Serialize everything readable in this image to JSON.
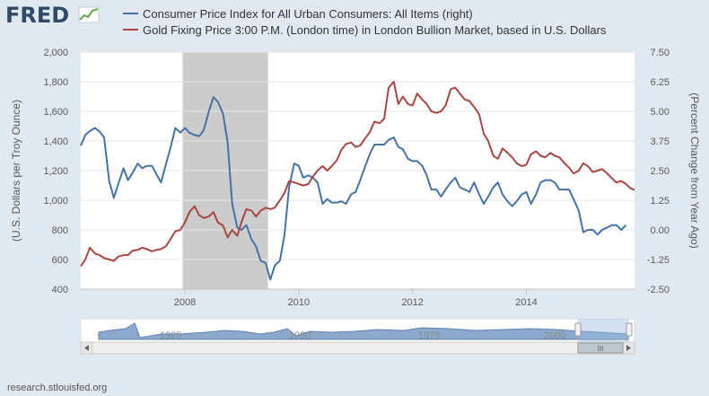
{
  "header": {
    "logo_text": "FRED",
    "logo_icon": "fred-chart-icon"
  },
  "footer": {
    "source": "research.stlouisfed.org"
  },
  "colors": {
    "cpi": "#4572a7",
    "gold": "#aa4643",
    "recession": "#cccccc",
    "plot_bg": "#ffffff",
    "page_bg": "#e1e9f0"
  },
  "navigator": {
    "labels": [
      "1925",
      "1950",
      "1975",
      "2000"
    ],
    "scroll_label": "III"
  },
  "chart_data": {
    "type": "line",
    "x_range": [
      2006.17,
      2015.9
    ],
    "x_ticks": [
      "2008",
      "2010",
      "2012",
      "2014"
    ],
    "x_tick_values": [
      2008,
      2010,
      2012,
      2014
    ],
    "recession": {
      "start": 2007.96,
      "end": 2009.46
    },
    "y_left": {
      "label": "(U.S. Dollars per Troy Ounce)",
      "range": [
        400,
        2000
      ],
      "ticks": [
        "2,000",
        "1,800",
        "1,600",
        "1,400",
        "1,200",
        "1,000",
        "800",
        "600",
        "400"
      ],
      "tick_values": [
        2000,
        1800,
        1600,
        1400,
        1200,
        1000,
        800,
        600,
        400
      ]
    },
    "y_right": {
      "label": "(Percent Change from Year Ago)",
      "range": [
        -2.5,
        7.5
      ],
      "ticks": [
        "7.50",
        "6.25",
        "5.00",
        "3.75",
        "2.50",
        "1.25",
        "0.00",
        "-1.25",
        "-2.50"
      ],
      "tick_values": [
        7.5,
        6.25,
        5.0,
        3.75,
        2.5,
        1.25,
        0.0,
        -1.25,
        -2.5
      ]
    },
    "series": [
      {
        "name": "Consumer Price Index for All Urban Consumers: All Items (right)",
        "axis": "right",
        "color": "#4572a7",
        "x": [
          2006.17,
          2006.25,
          2006.33,
          2006.42,
          2006.5,
          2006.58,
          2006.67,
          2006.75,
          2006.83,
          2006.92,
          2007.0,
          2007.08,
          2007.17,
          2007.25,
          2007.33,
          2007.42,
          2007.5,
          2007.58,
          2007.67,
          2007.75,
          2007.83,
          2007.92,
          2008.0,
          2008.08,
          2008.17,
          2008.25,
          2008.33,
          2008.42,
          2008.5,
          2008.58,
          2008.67,
          2008.75,
          2008.83,
          2008.92,
          2009.0,
          2009.08,
          2009.17,
          2009.25,
          2009.33,
          2009.42,
          2009.5,
          2009.58,
          2009.67,
          2009.75,
          2009.83,
          2009.92,
          2010.0,
          2010.08,
          2010.17,
          2010.25,
          2010.33,
          2010.42,
          2010.5,
          2010.58,
          2010.67,
          2010.75,
          2010.83,
          2010.92,
          2011.0,
          2011.08,
          2011.17,
          2011.25,
          2011.33,
          2011.42,
          2011.5,
          2011.58,
          2011.67,
          2011.75,
          2011.83,
          2011.92,
          2012.0,
          2012.08,
          2012.17,
          2012.25,
          2012.33,
          2012.42,
          2012.5,
          2012.58,
          2012.67,
          2012.75,
          2012.83,
          2012.92,
          2013.0,
          2013.08,
          2013.17,
          2013.25,
          2013.33,
          2013.42,
          2013.5,
          2013.58,
          2013.67,
          2013.75,
          2013.83,
          2013.92,
          2014.0,
          2014.08,
          2014.17,
          2014.25,
          2014.33,
          2014.42,
          2014.5,
          2014.58,
          2014.67,
          2014.75,
          2014.83,
          2014.92,
          2015.0,
          2015.08,
          2015.17,
          2015.25,
          2015.33,
          2015.42,
          2015.5,
          2015.58,
          2015.67,
          2015.75
        ],
        "values": [
          3.55,
          4.0,
          4.17,
          4.3,
          4.15,
          3.9,
          2.05,
          1.35,
          1.95,
          2.6,
          2.1,
          2.4,
          2.8,
          2.6,
          2.7,
          2.7,
          2.35,
          2.0,
          2.8,
          3.5,
          4.3,
          4.1,
          4.3,
          4.1,
          4.0,
          3.95,
          4.2,
          5.0,
          5.6,
          5.4,
          4.9,
          3.7,
          1.1,
          0.1,
          0.0,
          0.2,
          -0.4,
          -0.7,
          -1.3,
          -1.4,
          -2.1,
          -1.5,
          -1.3,
          -0.2,
          1.8,
          2.8,
          2.7,
          2.2,
          2.3,
          2.2,
          2.0,
          1.1,
          1.3,
          1.15,
          1.15,
          1.2,
          1.1,
          1.5,
          1.6,
          2.1,
          2.7,
          3.2,
          3.6,
          3.6,
          3.6,
          3.8,
          3.9,
          3.5,
          3.4,
          3.0,
          2.9,
          2.9,
          2.7,
          2.3,
          1.7,
          1.7,
          1.4,
          1.7,
          2.0,
          2.2,
          1.8,
          1.7,
          1.6,
          2.0,
          1.5,
          1.1,
          1.4,
          1.8,
          2.0,
          1.5,
          1.2,
          1.0,
          1.2,
          1.5,
          1.6,
          1.1,
          1.5,
          2.0,
          2.1,
          2.1,
          2.0,
          1.7,
          1.7,
          1.7,
          1.3,
          0.8,
          -0.1,
          0.0,
          0.0,
          -0.2,
          0.0,
          0.1,
          0.2,
          0.2,
          0.0,
          0.2
        ]
      },
      {
        "name": "Gold Fixing Price 3:00 P.M. (London time) in London Bullion Market, based in U.S. Dollars",
        "axis": "left",
        "color": "#aa4643",
        "x": [
          2006.17,
          2006.25,
          2006.33,
          2006.42,
          2006.5,
          2006.58,
          2006.67,
          2006.75,
          2006.83,
          2006.92,
          2007.0,
          2007.08,
          2007.17,
          2007.25,
          2007.33,
          2007.42,
          2007.5,
          2007.58,
          2007.67,
          2007.75,
          2007.83,
          2007.92,
          2008.0,
          2008.08,
          2008.17,
          2008.25,
          2008.33,
          2008.42,
          2008.5,
          2008.58,
          2008.67,
          2008.75,
          2008.83,
          2008.92,
          2009.0,
          2009.08,
          2009.17,
          2009.25,
          2009.33,
          2009.42,
          2009.5,
          2009.58,
          2009.67,
          2009.75,
          2009.83,
          2009.92,
          2010.0,
          2010.08,
          2010.17,
          2010.25,
          2010.33,
          2010.42,
          2010.5,
          2010.58,
          2010.67,
          2010.75,
          2010.83,
          2010.92,
          2011.0,
          2011.08,
          2011.17,
          2011.25,
          2011.33,
          2011.42,
          2011.5,
          2011.58,
          2011.67,
          2011.75,
          2011.83,
          2011.92,
          2012.0,
          2012.08,
          2012.17,
          2012.25,
          2012.33,
          2012.42,
          2012.5,
          2012.58,
          2012.67,
          2012.75,
          2012.83,
          2012.92,
          2013.0,
          2013.08,
          2013.17,
          2013.25,
          2013.33,
          2013.42,
          2013.5,
          2013.58,
          2013.67,
          2013.75,
          2013.83,
          2013.92,
          2014.0,
          2014.08,
          2014.17,
          2014.25,
          2014.33,
          2014.42,
          2014.5,
          2014.58,
          2014.67,
          2014.75,
          2014.83,
          2014.92,
          2015.0,
          2015.08,
          2015.17,
          2015.25,
          2015.33,
          2015.42,
          2015.5,
          2015.58,
          2015.67,
          2015.75,
          2015.83,
          2015.9
        ],
        "values": [
          555,
          600,
          680,
          640,
          630,
          610,
          600,
          590,
          620,
          630,
          630,
          660,
          665,
          680,
          670,
          655,
          665,
          670,
          690,
          740,
          790,
          800,
          850,
          920,
          960,
          900,
          880,
          890,
          920,
          850,
          830,
          750,
          800,
          760,
          860,
          940,
          930,
          890,
          930,
          950,
          940,
          950,
          1000,
          1050,
          1130,
          1120,
          1110,
          1100,
          1110,
          1160,
          1200,
          1230,
          1200,
          1230,
          1270,
          1340,
          1380,
          1390,
          1360,
          1370,
          1420,
          1460,
          1530,
          1520,
          1550,
          1760,
          1800,
          1650,
          1700,
          1650,
          1640,
          1720,
          1680,
          1650,
          1600,
          1590,
          1600,
          1640,
          1750,
          1760,
          1720,
          1680,
          1670,
          1630,
          1580,
          1450,
          1400,
          1300,
          1280,
          1350,
          1320,
          1290,
          1250,
          1230,
          1240,
          1310,
          1330,
          1300,
          1290,
          1320,
          1300,
          1290,
          1250,
          1220,
          1180,
          1200,
          1250,
          1230,
          1190,
          1200,
          1210,
          1180,
          1150,
          1120,
          1130,
          1110,
          1080,
          1070
        ]
      }
    ]
  }
}
